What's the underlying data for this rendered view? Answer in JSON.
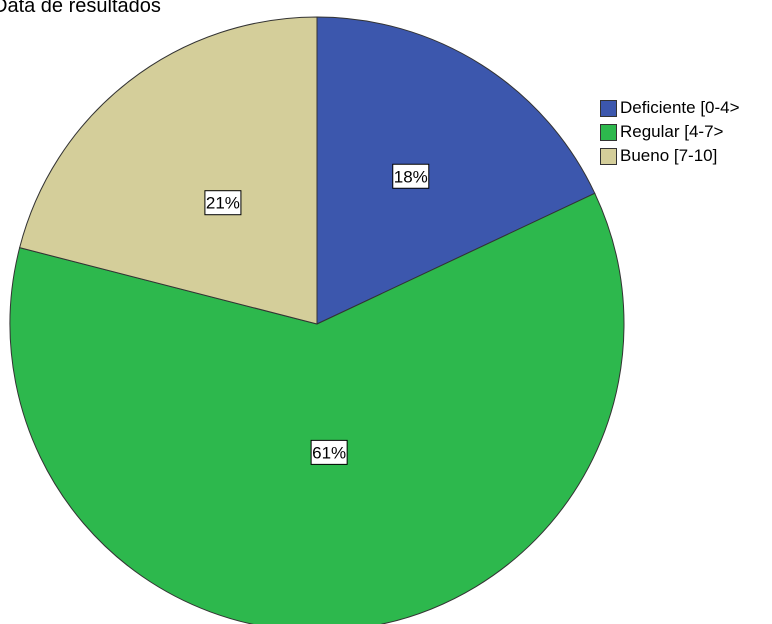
{
  "chart_data": {
    "type": "pie",
    "title": "Data de resultados",
    "slices": [
      {
        "label": "Deficiente [0-4>",
        "value": 18,
        "display": "18%",
        "color": "#3c57ad"
      },
      {
        "label": "Regular [4-7>",
        "value": 61,
        "display": "61%",
        "color": "#2db84d"
      },
      {
        "label": "Bueno [7-10]",
        "value": 21,
        "display": "21%",
        "color": "#d4ce9a"
      }
    ],
    "legend_position": "right"
  }
}
